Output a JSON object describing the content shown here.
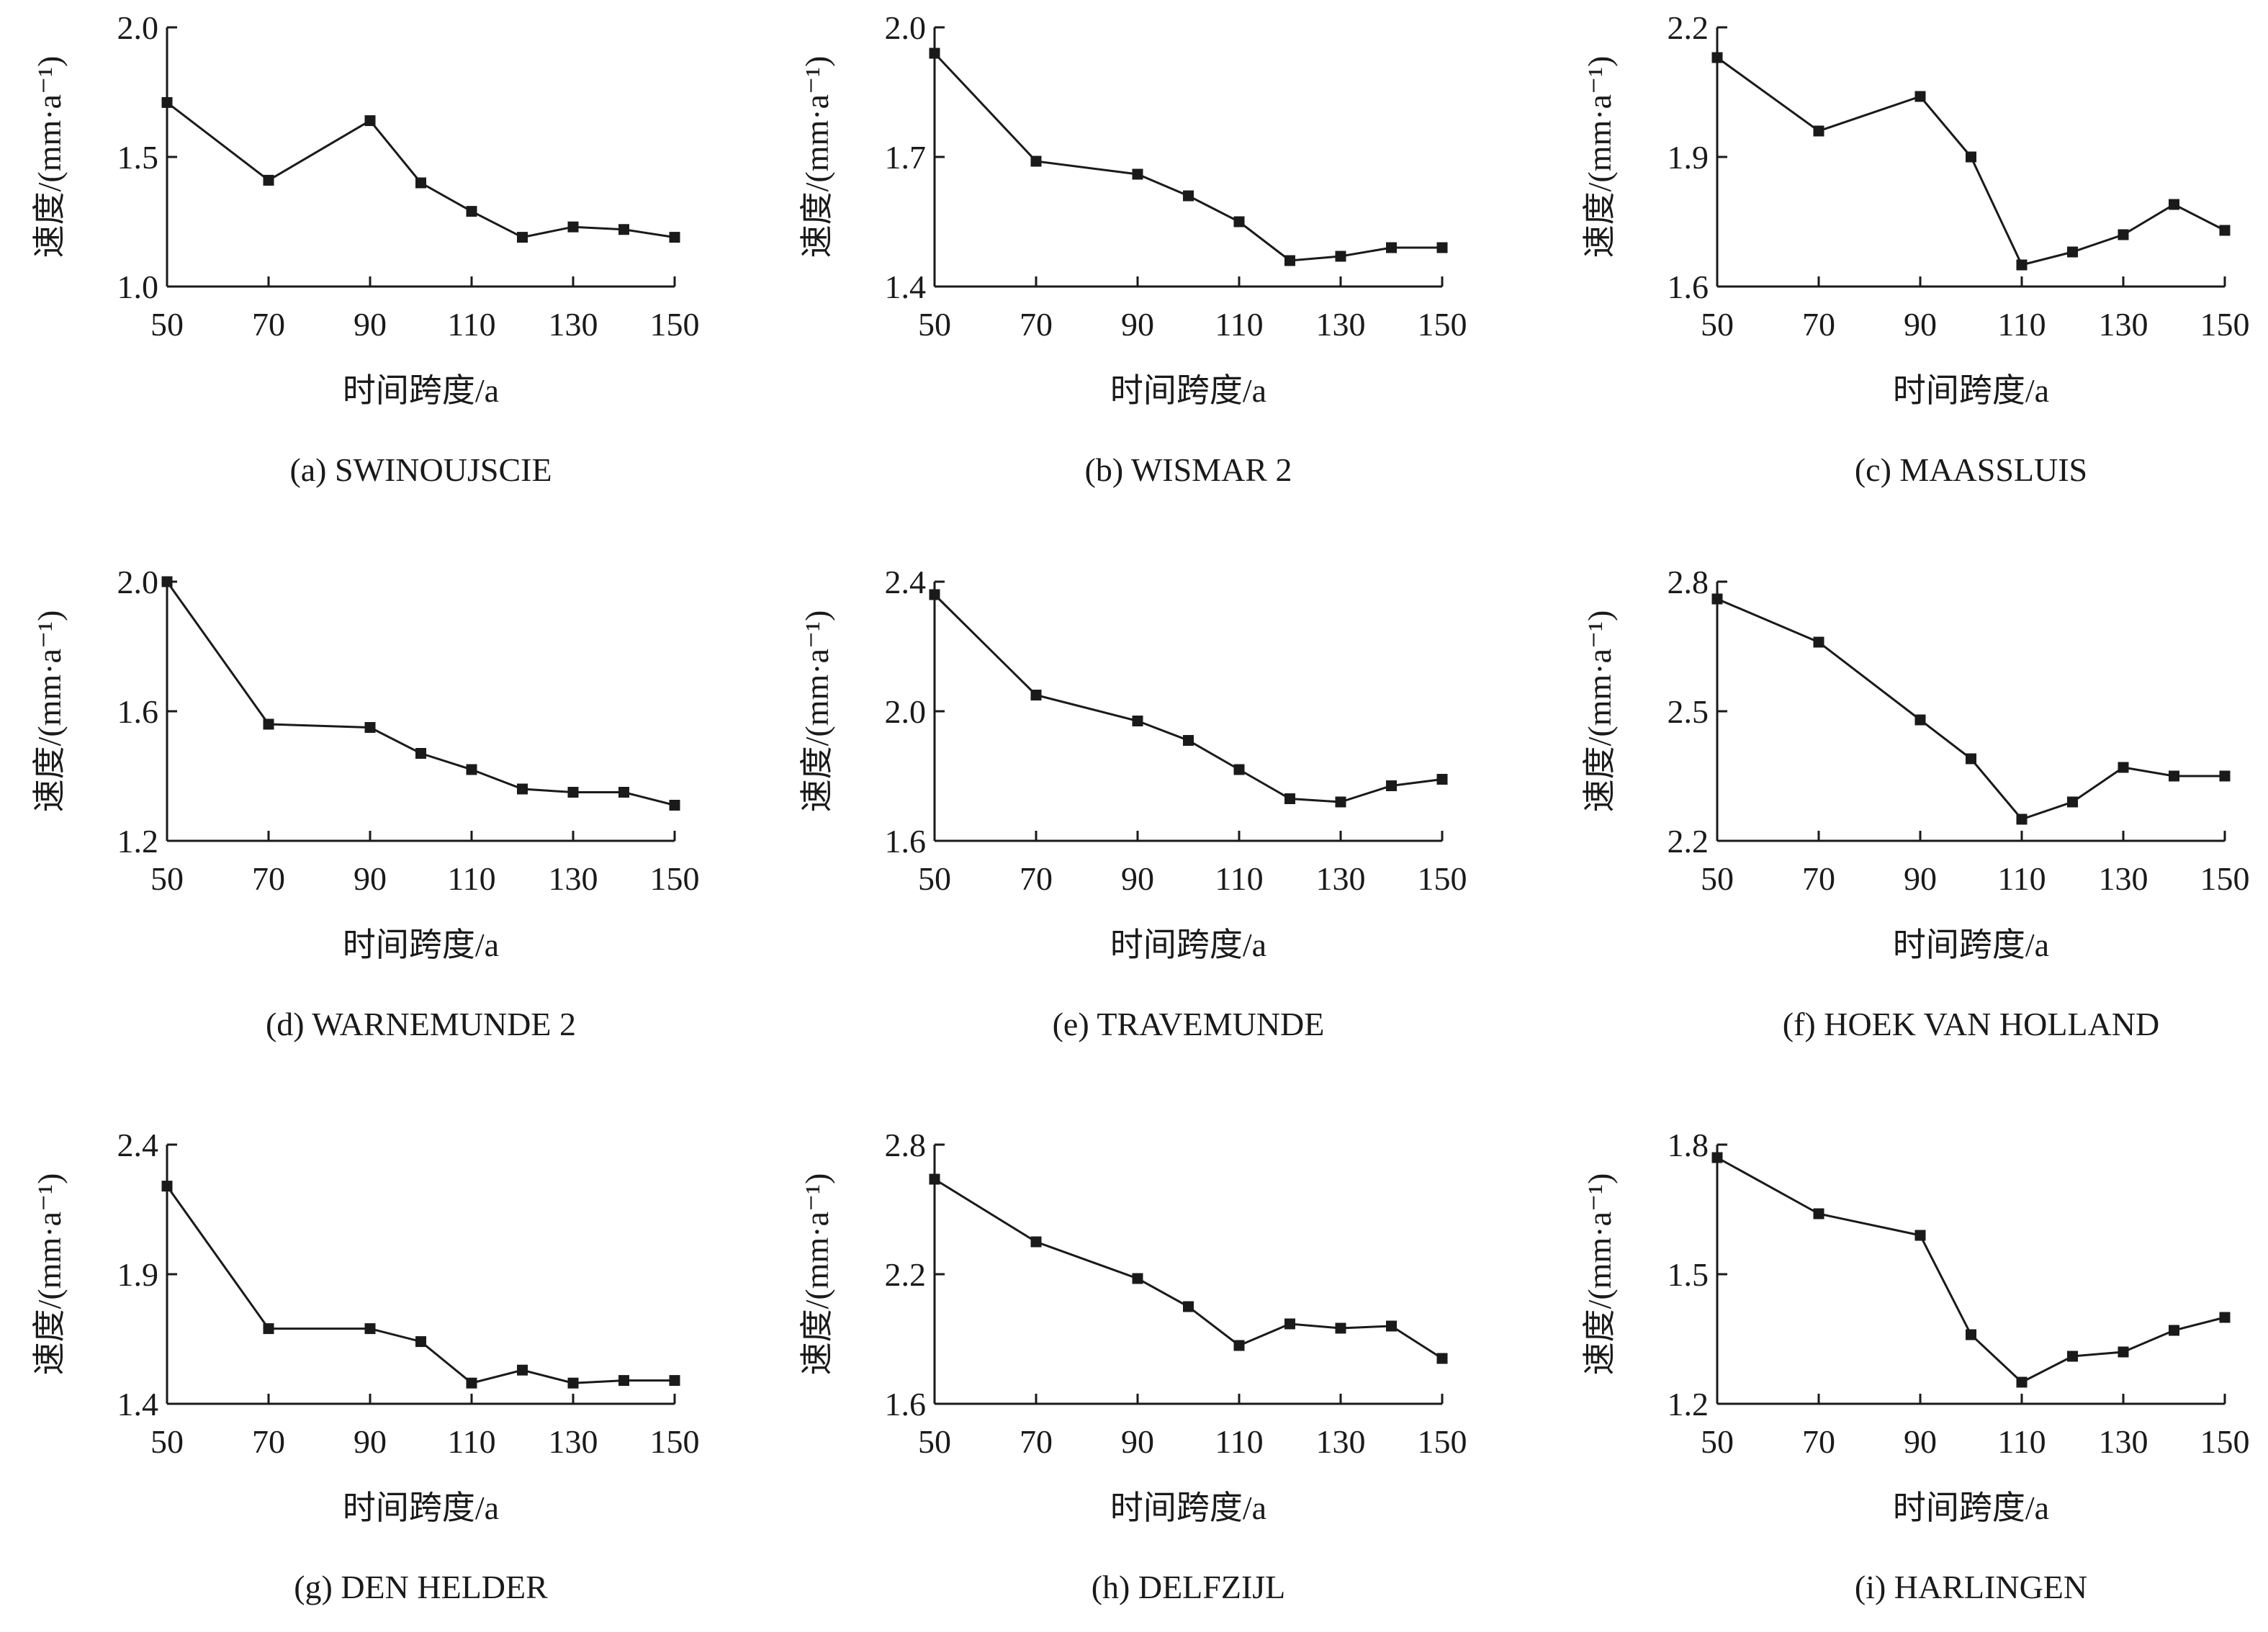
{
  "figure": {
    "line_color": "#1a1a1a",
    "background": "#ffffff",
    "marker": "filled-square"
  },
  "chart_data": [
    {
      "type": "line",
      "caption": "(a) SWINOUJSCIE",
      "xlabel": "时间跨度/a",
      "ylabel": "速度/(mm·a⁻¹)",
      "xlim": [
        50,
        150
      ],
      "ylim": [
        1.0,
        2.0
      ],
      "xticks": [
        "50",
        "70",
        "90",
        "110",
        "130",
        "150"
      ],
      "yticks": [
        "1.0",
        "1.5",
        "2.0"
      ],
      "x": [
        50,
        70,
        90,
        100,
        110,
        120,
        130,
        140,
        150
      ],
      "y": [
        1.71,
        1.41,
        1.64,
        1.4,
        1.29,
        1.19,
        1.23,
        1.22,
        1.19
      ]
    },
    {
      "type": "line",
      "caption": "(b) WISMAR 2",
      "xlabel": "时间跨度/a",
      "ylabel": "速度/(mm·a⁻¹)",
      "xlim": [
        50,
        150
      ],
      "ylim": [
        1.4,
        2.0
      ],
      "xticks": [
        "50",
        "70",
        "90",
        "110",
        "130",
        "150"
      ],
      "yticks": [
        "1.4",
        "1.7",
        "2.0"
      ],
      "x": [
        50,
        70,
        90,
        100,
        110,
        120,
        130,
        140,
        150
      ],
      "y": [
        1.94,
        1.69,
        1.66,
        1.61,
        1.55,
        1.46,
        1.47,
        1.49,
        1.49
      ]
    },
    {
      "type": "line",
      "caption": "(c) MAASSLUIS",
      "xlabel": "时间跨度/a",
      "ylabel": "速度/(mm·a⁻¹)",
      "xlim": [
        50,
        150
      ],
      "ylim": [
        1.6,
        2.2
      ],
      "xticks": [
        "50",
        "70",
        "90",
        "110",
        "130",
        "150"
      ],
      "yticks": [
        "1.6",
        "1.9",
        "2.2"
      ],
      "x": [
        50,
        70,
        90,
        100,
        110,
        120,
        130,
        140,
        150
      ],
      "y": [
        2.13,
        1.96,
        2.04,
        1.9,
        1.65,
        1.68,
        1.72,
        1.79,
        1.73
      ]
    },
    {
      "type": "line",
      "caption": "(d) WARNEMUNDE 2",
      "xlabel": "时间跨度/a",
      "ylabel": "速度/(mm·a⁻¹)",
      "xlim": [
        50,
        150
      ],
      "ylim": [
        1.2,
        2.0
      ],
      "xticks": [
        "50",
        "70",
        "90",
        "110",
        "130",
        "150"
      ],
      "yticks": [
        "1.2",
        "1.6",
        "2.0"
      ],
      "x": [
        50,
        70,
        90,
        100,
        110,
        120,
        130,
        140,
        150
      ],
      "y": [
        2.0,
        1.56,
        1.55,
        1.47,
        1.42,
        1.36,
        1.35,
        1.35,
        1.31
      ]
    },
    {
      "type": "line",
      "caption": "(e) TRAVEMUNDE",
      "xlabel": "时间跨度/a",
      "ylabel": "速度/(mm·a⁻¹)",
      "xlim": [
        50,
        150
      ],
      "ylim": [
        1.6,
        2.4
      ],
      "xticks": [
        "50",
        "70",
        "90",
        "110",
        "130",
        "150"
      ],
      "yticks": [
        "1.6",
        "2.0",
        "2.4"
      ],
      "x": [
        50,
        70,
        90,
        100,
        110,
        120,
        130,
        140,
        150
      ],
      "y": [
        2.36,
        2.05,
        1.97,
        1.91,
        1.82,
        1.73,
        1.72,
        1.77,
        1.79
      ]
    },
    {
      "type": "line",
      "caption": "(f) HOEK VAN HOLLAND",
      "xlabel": "时间跨度/a",
      "ylabel": "速度/(mm·a⁻¹)",
      "xlim": [
        50,
        150
      ],
      "ylim": [
        2.2,
        2.8
      ],
      "xticks": [
        "50",
        "70",
        "90",
        "110",
        "130",
        "150"
      ],
      "yticks": [
        "2.2",
        "2.5",
        "2.8"
      ],
      "x": [
        50,
        70,
        90,
        100,
        110,
        120,
        130,
        140,
        150
      ],
      "y": [
        2.76,
        2.66,
        2.48,
        2.39,
        2.25,
        2.29,
        2.37,
        2.35,
        2.35
      ]
    },
    {
      "type": "line",
      "caption": "(g) DEN HELDER",
      "xlabel": "时间跨度/a",
      "ylabel": "速度/(mm·a⁻¹)",
      "xlim": [
        50,
        150
      ],
      "ylim": [
        1.4,
        2.4
      ],
      "xticks": [
        "50",
        "70",
        "90",
        "110",
        "130",
        "150"
      ],
      "yticks": [
        "1.4",
        "1.9",
        "2.4"
      ],
      "x": [
        50,
        70,
        90,
        100,
        110,
        120,
        130,
        140,
        150
      ],
      "y": [
        2.24,
        1.69,
        1.69,
        1.64,
        1.48,
        1.53,
        1.48,
        1.49,
        1.49
      ]
    },
    {
      "type": "line",
      "caption": "(h) DELFZIJL",
      "xlabel": "时间跨度/a",
      "ylabel": "速度/(mm·a⁻¹)",
      "xlim": [
        50,
        150
      ],
      "ylim": [
        1.6,
        2.8
      ],
      "xticks": [
        "50",
        "70",
        "90",
        "110",
        "130",
        "150"
      ],
      "yticks": [
        "1.6",
        "2.2",
        "2.8"
      ],
      "x": [
        50,
        70,
        90,
        100,
        110,
        120,
        130,
        140,
        150
      ],
      "y": [
        2.64,
        2.35,
        2.18,
        2.05,
        1.87,
        1.97,
        1.95,
        1.96,
        1.81
      ]
    },
    {
      "type": "line",
      "caption": "(i) HARLINGEN",
      "xlabel": "时间跨度/a",
      "ylabel": "速度/(mm·a⁻¹)",
      "xlim": [
        50,
        150
      ],
      "ylim": [
        1.2,
        1.8
      ],
      "xticks": [
        "50",
        "70",
        "90",
        "110",
        "130",
        "150"
      ],
      "yticks": [
        "1.2",
        "1.5",
        "1.8"
      ],
      "x": [
        50,
        70,
        90,
        100,
        110,
        120,
        130,
        140,
        150
      ],
      "y": [
        1.77,
        1.64,
        1.59,
        1.36,
        1.25,
        1.31,
        1.32,
        1.37,
        1.4
      ]
    }
  ]
}
